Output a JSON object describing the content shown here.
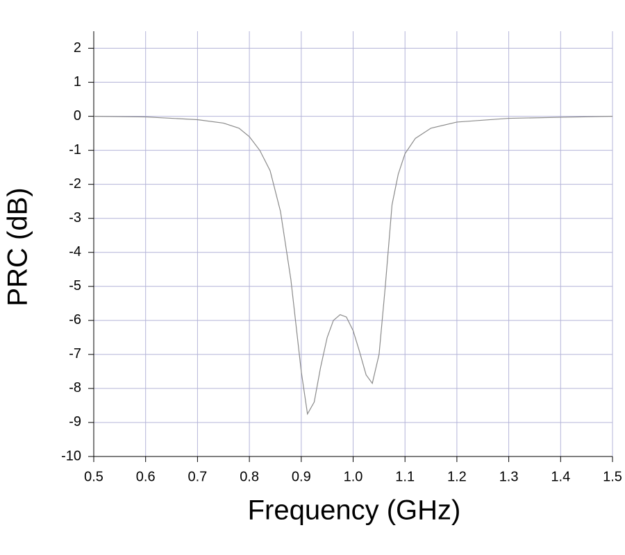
{
  "chart_data": {
    "type": "line",
    "x_label": "Frequency (GHz)",
    "y_label": "PRC (dB)",
    "x": [
      0.5,
      0.6,
      0.7,
      0.75,
      0.78,
      0.8,
      0.82,
      0.84,
      0.86,
      0.88,
      0.9,
      0.912,
      0.925,
      0.937,
      0.95,
      0.962,
      0.975,
      0.987,
      1.0,
      1.012,
      1.025,
      1.037,
      1.05,
      1.062,
      1.075,
      1.087,
      1.1,
      1.12,
      1.15,
      1.2,
      1.3,
      1.4,
      1.5
    ],
    "series": [
      {
        "color": "#8a8a8a",
        "values": [
          0,
          -0.02,
          -0.1,
          -0.2,
          -0.35,
          -0.6,
          -1.0,
          -1.6,
          -2.8,
          -4.8,
          -7.5,
          -8.75,
          -8.4,
          -7.4,
          -6.5,
          -6.0,
          -5.83,
          -5.9,
          -6.3,
          -6.9,
          -7.6,
          -7.85,
          -7.0,
          -5.0,
          -2.6,
          -1.7,
          -1.1,
          -0.65,
          -0.35,
          -0.17,
          -0.06,
          -0.03,
          0
        ]
      }
    ],
    "xlim": [
      0.5,
      1.5
    ],
    "xticks": [
      0.5,
      0.6,
      0.7,
      0.8,
      0.9,
      {
        "value": 1,
        "label": "1.0"
      },
      1.1,
      1.2,
      1.3,
      1.4,
      1.5
    ],
    "ylim": [
      -10,
      2.5
    ],
    "yticks": [
      -10,
      -9,
      -8,
      -7,
      -6,
      -5,
      -4,
      -3,
      -2,
      -1,
      0,
      1,
      2
    ],
    "grid": true,
    "grid_color": "#b4b4d8"
  }
}
